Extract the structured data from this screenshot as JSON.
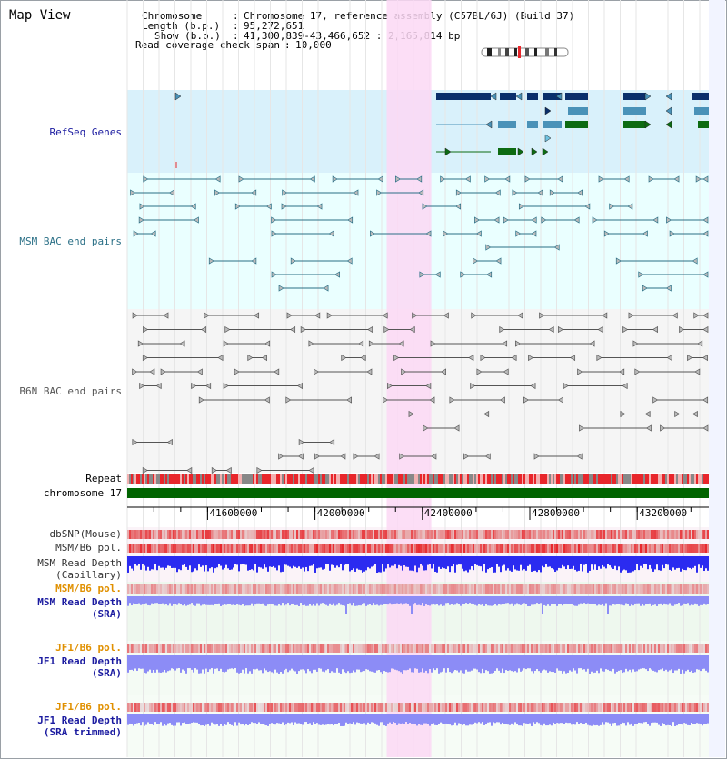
{
  "view_title": "Map View",
  "info": {
    "chromosome_label": "Chromosome",
    "chromosome_value": "Chromosome 17, reference assembly (C57BL/6J) (Build 37)",
    "length_label": "Length (b.p.)",
    "length_value": "95,272,651",
    "show_label": "Show (b.p.)",
    "show_value": "41,300,839-43,466,652 : 2,165,814 bp",
    "span_label": "Read coverage check span",
    "span_value": "10,000"
  },
  "tracks": {
    "refseq": "RefSeq Genes",
    "msm_bac": "MSM BAC end pairs",
    "b6n_bac": "B6N BAC end pairs",
    "repeat": "Repeat",
    "chromosome": "chromosome 17",
    "dbsnp": "dbSNP(Mouse)",
    "msm_b6_pol": "MSM/B6 pol.",
    "msm_depth_cap_1": "MSM Read Depth",
    "msm_depth_cap_2": "(Capillary)",
    "msm_b6_pol_sra": "MSM/B6 pol.",
    "msm_depth_sra_1": "MSM Read Depth",
    "msm_depth_sra_2": "(SRA)",
    "jf1_b6_pol": "JF1/B6 pol.",
    "jf1_depth_sra_1": "JF1 Read Depth",
    "jf1_depth_sra_2": "(SRA)",
    "jf1_b6_pol_trim": "JF1/B6 pol.",
    "jf1_depth_trim_1": "JF1 Read Depth",
    "jf1_depth_trim_2": "(SRA trimmed)"
  },
  "axis_ticks": [
    {
      "pos": 41600000,
      "label": "41600000"
    },
    {
      "pos": 42000000,
      "label": "42000000"
    },
    {
      "pos": 42400000,
      "label": "42400000"
    },
    {
      "pos": 42800000,
      "label": "42800000"
    },
    {
      "pos": 43200000,
      "label": "43200000"
    }
  ],
  "view_range": {
    "start": 41300839,
    "end": 43466652
  },
  "highlight_region": {
    "start": 42267000,
    "end": 42433000
  },
  "colors": {
    "refseq_bg": "#d9f1fb",
    "msm_bg": "#eaffff",
    "b6n_bg": "#f5f5f5",
    "highlight": "#fcd8f4",
    "refseq_dark": "#0b2f6b",
    "refseq_mid": "#4a92b8",
    "refseq_green": "#0d6b12",
    "msm_bac": "#2a6f86",
    "b6n_bac": "#555555",
    "chromosome": "#006400",
    "snp_red": "#e8262b",
    "depth_blue": "#2b2bf0",
    "depth_light": "#8c8cf6",
    "label_blue": "#1b1ba0",
    "label_orange": "#e09000"
  }
}
